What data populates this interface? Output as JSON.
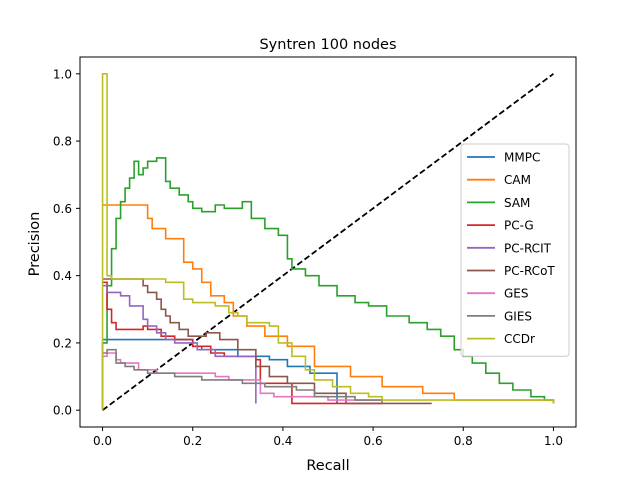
{
  "chart_data": {
    "type": "line",
    "title": "Syntren 100 nodes",
    "xlabel": "Recall",
    "ylabel": "Precision",
    "xlim": [
      -0.05,
      1.05
    ],
    "ylim": [
      -0.05,
      1.05
    ],
    "xticks": [
      {
        "value": 0.0,
        "label": "0.0"
      },
      {
        "value": 0.2,
        "label": "0.2"
      },
      {
        "value": 0.4,
        "label": "0.4"
      },
      {
        "value": 0.6,
        "label": "0.6"
      },
      {
        "value": 0.8,
        "label": "0.8"
      },
      {
        "value": 1.0,
        "label": "1.0"
      }
    ],
    "yticks": [
      {
        "value": 0.0,
        "label": "0.0"
      },
      {
        "value": 0.2,
        "label": "0.2"
      },
      {
        "value": 0.4,
        "label": "0.4"
      },
      {
        "value": 0.6,
        "label": "0.6"
      },
      {
        "value": 0.8,
        "label": "0.8"
      },
      {
        "value": 1.0,
        "label": "1.0"
      }
    ],
    "grid": false,
    "legend_position": "right",
    "diagonal": {
      "points": [
        [
          0,
          0
        ],
        [
          1,
          1
        ]
      ],
      "color": "#000000",
      "style": "dashed"
    },
    "series": [
      {
        "name": "MMPC",
        "color": "#1f77b4",
        "points": [
          [
            0,
            0.21
          ],
          [
            0.18,
            0.21
          ],
          [
            0.2,
            0.19
          ],
          [
            0.22,
            0.18
          ],
          [
            0.3,
            0.16
          ],
          [
            0.37,
            0.15
          ],
          [
            0.41,
            0.13
          ],
          [
            0.46,
            0.11
          ],
          [
            0.52,
            0.02
          ]
        ]
      },
      {
        "name": "CAM",
        "color": "#ff7f0e",
        "points": [
          [
            0,
            0.61
          ],
          [
            0.1,
            0.57
          ],
          [
            0.11,
            0.54
          ],
          [
            0.14,
            0.51
          ],
          [
            0.18,
            0.44
          ],
          [
            0.2,
            0.42
          ],
          [
            0.22,
            0.38
          ],
          [
            0.24,
            0.34
          ],
          [
            0.27,
            0.32
          ],
          [
            0.29,
            0.28
          ],
          [
            0.32,
            0.25
          ],
          [
            0.36,
            0.22
          ],
          [
            0.41,
            0.19
          ],
          [
            0.47,
            0.13
          ],
          [
            0.55,
            0.1
          ],
          [
            0.62,
            0.07
          ],
          [
            0.71,
            0.05
          ],
          [
            0.78,
            0.03
          ],
          [
            1.0,
            0.02
          ]
        ]
      },
      {
        "name": "SAM",
        "color": "#2ca02c",
        "points": [
          [
            0,
            0.0
          ],
          [
            0,
            0.2
          ],
          [
            0.01,
            0.37
          ],
          [
            0.02,
            0.48
          ],
          [
            0.03,
            0.57
          ],
          [
            0.04,
            0.62
          ],
          [
            0.05,
            0.66
          ],
          [
            0.06,
            0.69
          ],
          [
            0.07,
            0.74
          ],
          [
            0.08,
            0.7
          ],
          [
            0.09,
            0.72
          ],
          [
            0.1,
            0.74
          ],
          [
            0.12,
            0.75
          ],
          [
            0.14,
            0.68
          ],
          [
            0.15,
            0.66
          ],
          [
            0.17,
            0.64
          ],
          [
            0.19,
            0.62
          ],
          [
            0.2,
            0.6
          ],
          [
            0.22,
            0.59
          ],
          [
            0.25,
            0.61
          ],
          [
            0.27,
            0.6
          ],
          [
            0.31,
            0.62
          ],
          [
            0.33,
            0.57
          ],
          [
            0.36,
            0.54
          ],
          [
            0.39,
            0.52
          ],
          [
            0.41,
            0.45
          ],
          [
            0.42,
            0.42
          ],
          [
            0.45,
            0.4
          ],
          [
            0.48,
            0.37
          ],
          [
            0.52,
            0.34
          ],
          [
            0.56,
            0.32
          ],
          [
            0.59,
            0.31
          ],
          [
            0.63,
            0.28
          ],
          [
            0.68,
            0.26
          ],
          [
            0.72,
            0.24
          ],
          [
            0.75,
            0.22
          ],
          [
            0.78,
            0.18
          ],
          [
            0.8,
            0.16
          ],
          [
            0.82,
            0.14
          ],
          [
            0.85,
            0.11
          ],
          [
            0.88,
            0.08
          ],
          [
            0.91,
            0.06
          ],
          [
            0.95,
            0.04
          ],
          [
            0.98,
            0.03
          ],
          [
            1.0,
            0.02
          ]
        ]
      },
      {
        "name": "PC-G",
        "color": "#d62728",
        "points": [
          [
            0,
            0.38
          ],
          [
            0.01,
            0.3
          ],
          [
            0.02,
            0.26
          ],
          [
            0.03,
            0.24
          ],
          [
            0.09,
            0.25
          ],
          [
            0.1,
            0.24
          ],
          [
            0.13,
            0.22
          ],
          [
            0.16,
            0.21
          ],
          [
            0.2,
            0.19
          ],
          [
            0.24,
            0.17
          ],
          [
            0.27,
            0.16
          ],
          [
            0.34,
            0.15
          ],
          [
            0.35,
            0.08
          ],
          [
            0.42,
            0.02
          ],
          [
            0.62,
            0.02
          ]
        ]
      },
      {
        "name": "PC-RCIT",
        "color": "#9467bd",
        "points": [
          [
            0,
            0.37
          ],
          [
            0.01,
            0.35
          ],
          [
            0.04,
            0.34
          ],
          [
            0.06,
            0.31
          ],
          [
            0.09,
            0.27
          ],
          [
            0.1,
            0.25
          ],
          [
            0.12,
            0.23
          ],
          [
            0.14,
            0.21
          ],
          [
            0.16,
            0.2
          ],
          [
            0.21,
            0.18
          ],
          [
            0.25,
            0.16
          ],
          [
            0.31,
            0.16
          ],
          [
            0.34,
            0.16
          ],
          [
            0.34,
            0.02
          ]
        ]
      },
      {
        "name": "PC-RCoT",
        "color": "#8c564b",
        "points": [
          [
            0,
            0.39
          ],
          [
            0.08,
            0.39
          ],
          [
            0.09,
            0.37
          ],
          [
            0.1,
            0.35
          ],
          [
            0.12,
            0.33
          ],
          [
            0.13,
            0.3
          ],
          [
            0.14,
            0.28
          ],
          [
            0.15,
            0.26
          ],
          [
            0.17,
            0.24
          ],
          [
            0.19,
            0.22
          ],
          [
            0.21,
            0.22
          ],
          [
            0.23,
            0.23
          ],
          [
            0.26,
            0.21
          ],
          [
            0.3,
            0.18
          ],
          [
            0.34,
            0.13
          ],
          [
            0.37,
            0.1
          ],
          [
            0.41,
            0.08
          ],
          [
            0.47,
            0.05
          ],
          [
            0.54,
            0.02
          ],
          [
            0.73,
            0.02
          ]
        ]
      },
      {
        "name": "GES",
        "color": "#e377c2",
        "points": [
          [
            0,
            0.16
          ],
          [
            0.01,
            0.17
          ],
          [
            0.03,
            0.15
          ],
          [
            0.04,
            0.14
          ],
          [
            0.08,
            0.12
          ],
          [
            0.12,
            0.11
          ],
          [
            0.16,
            0.11
          ],
          [
            0.2,
            0.11
          ],
          [
            0.25,
            0.1
          ],
          [
            0.28,
            0.09
          ],
          [
            0.34,
            0.09
          ],
          [
            0.35,
            0.05
          ],
          [
            0.38,
            0.04
          ],
          [
            0.44,
            0.04
          ],
          [
            0.5,
            0.03
          ],
          [
            0.62,
            0.03
          ]
        ]
      },
      {
        "name": "GIES",
        "color": "#7f7f7f",
        "points": [
          [
            0,
            0.17
          ],
          [
            0.01,
            0.18
          ],
          [
            0.03,
            0.14
          ],
          [
            0.05,
            0.13
          ],
          [
            0.07,
            0.12
          ],
          [
            0.1,
            0.11
          ],
          [
            0.16,
            0.1
          ],
          [
            0.22,
            0.09
          ],
          [
            0.26,
            0.09
          ],
          [
            0.31,
            0.08
          ],
          [
            0.36,
            0.07
          ],
          [
            0.43,
            0.06
          ],
          [
            0.47,
            0.04
          ],
          [
            0.56,
            0.03
          ],
          [
            0.62,
            0.02
          ]
        ]
      },
      {
        "name": "CCDr",
        "color": "#bcbd22",
        "points": [
          [
            0,
            0.0
          ],
          [
            0,
            1.0
          ],
          [
            0.01,
            0.4
          ],
          [
            0.02,
            0.39
          ],
          [
            0.08,
            0.39
          ],
          [
            0.14,
            0.38
          ],
          [
            0.18,
            0.33
          ],
          [
            0.2,
            0.32
          ],
          [
            0.25,
            0.31
          ],
          [
            0.28,
            0.29
          ],
          [
            0.3,
            0.28
          ],
          [
            0.32,
            0.26
          ],
          [
            0.37,
            0.25
          ],
          [
            0.39,
            0.2
          ],
          [
            0.42,
            0.16
          ],
          [
            0.45,
            0.12
          ],
          [
            0.47,
            0.09
          ],
          [
            0.51,
            0.07
          ],
          [
            0.55,
            0.05
          ],
          [
            0.59,
            0.04
          ],
          [
            0.62,
            0.03
          ],
          [
            1.0,
            0.02
          ]
        ]
      }
    ]
  }
}
